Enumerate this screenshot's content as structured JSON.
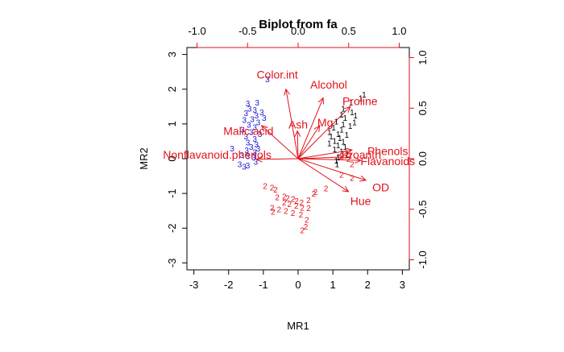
{
  "chart_data": {
    "type": "scatter",
    "title": "Biplot from fa",
    "xlabel": "MR1",
    "ylabel": "MR2",
    "xlim": [
      -3.2,
      3.2
    ],
    "ylim": [
      -3.2,
      3.2
    ],
    "xticks": [
      -3,
      -2,
      -1,
      0,
      1,
      2,
      3
    ],
    "yticks": [
      -3,
      -2,
      -1,
      0,
      1,
      2,
      3
    ],
    "top_axis": {
      "range": [
        -1.1,
        1.1
      ],
      "ticks": [
        -1.0,
        -0.5,
        0.0,
        0.5,
        1.0
      ],
      "tick_labels": [
        "-1.0",
        "-0.5",
        "0.0",
        "0.5",
        "1.0"
      ],
      "color": "#e3121b"
    },
    "right_axis": {
      "range": [
        -1.1,
        1.1
      ],
      "ticks": [
        -1.0,
        -0.5,
        0.0,
        0.5,
        1.0
      ],
      "tick_labels": [
        "-1.0",
        "-0.5",
        "0.0",
        "0.5",
        "1.0"
      ],
      "color": "#e3121b"
    },
    "loadings": [
      {
        "name": "Color.int",
        "x": -0.35,
        "y": 2.0,
        "lx": -0.6,
        "ly": 2.42
      },
      {
        "name": "Alcohol",
        "x": 0.72,
        "y": 1.75,
        "lx": 0.88,
        "ly": 2.13
      },
      {
        "name": "Proline",
        "x": 1.5,
        "y": 1.5,
        "lx": 1.78,
        "ly": 1.66
      },
      {
        "name": "Malic.acid",
        "x": -1.05,
        "y": 0.95,
        "lx": -1.43,
        "ly": 0.8
      },
      {
        "name": "Ash",
        "x": -0.02,
        "y": 0.8,
        "lx": 0.0,
        "ly": 0.98
      },
      {
        "name": "Mg",
        "x": 0.62,
        "y": 0.95,
        "lx": 0.78,
        "ly": 1.04
      },
      {
        "name": "Nonflavanoid.phenols",
        "x": -1.2,
        "y": -0.02,
        "lx": -2.33,
        "ly": 0.12
      },
      {
        "name": "Phenols",
        "x": 1.55,
        "y": 0.25,
        "lx": 2.58,
        "ly": 0.22
      },
      {
        "name": "Proanth",
        "x": 1.3,
        "y": 0.05,
        "lx": 1.82,
        "ly": 0.12
      },
      {
        "name": "Flavanoids",
        "x": 1.8,
        "y": -0.05,
        "lx": 2.58,
        "ly": -0.07
      },
      {
        "name": "OD",
        "x": 1.95,
        "y": -0.62,
        "lx": 2.38,
        "ly": -0.82
      },
      {
        "name": "Hue",
        "x": 1.45,
        "y": -0.95,
        "lx": 1.8,
        "ly": -1.22
      }
    ],
    "series": [
      {
        "name": "1",
        "color": "#000000",
        "points": [
          [
            1.9,
            1.85
          ],
          [
            1.8,
            1.75
          ],
          [
            1.52,
            1.62
          ],
          [
            1.3,
            1.45
          ],
          [
            1.55,
            1.35
          ],
          [
            1.25,
            1.28
          ],
          [
            1.65,
            1.25
          ],
          [
            1.35,
            1.18
          ],
          [
            1.62,
            1.05
          ],
          [
            1.1,
            1.08
          ],
          [
            1.3,
            1.0
          ],
          [
            1.5,
            0.95
          ],
          [
            1.02,
            0.9
          ],
          [
            1.25,
            0.85
          ],
          [
            0.9,
            0.78
          ],
          [
            1.15,
            0.72
          ],
          [
            1.4,
            0.7
          ],
          [
            0.95,
            0.65
          ],
          [
            1.2,
            0.6
          ],
          [
            1.05,
            0.52
          ],
          [
            1.3,
            0.5
          ],
          [
            0.9,
            0.45
          ],
          [
            1.15,
            0.4
          ],
          [
            1.35,
            0.35
          ],
          [
            1.05,
            0.28
          ],
          [
            1.25,
            0.22
          ],
          [
            1.4,
            0.12
          ],
          [
            1.15,
            0.05
          ],
          [
            1.1,
            -0.05
          ],
          [
            1.12,
            -0.15
          ]
        ]
      },
      {
        "name": "2",
        "color": "#e3121b",
        "points": [
          [
            1.5,
            0.1
          ],
          [
            1.38,
            0.1
          ],
          [
            1.25,
            0.08
          ],
          [
            1.45,
            0.0
          ],
          [
            1.55,
            -0.15
          ],
          [
            1.25,
            -0.45
          ],
          [
            1.55,
            -0.55
          ],
          [
            0.8,
            -0.85
          ],
          [
            0.45,
            -1.0
          ],
          [
            0.5,
            -0.95
          ],
          [
            -0.95,
            -0.78
          ],
          [
            -0.75,
            -0.82
          ],
          [
            -0.65,
            -0.88
          ],
          [
            -0.6,
            -1.1
          ],
          [
            -0.4,
            -1.08
          ],
          [
            -0.3,
            -1.12
          ],
          [
            -0.15,
            -1.15
          ],
          [
            -0.05,
            -1.2
          ],
          [
            0.1,
            -1.25
          ],
          [
            0.3,
            -1.18
          ],
          [
            -0.4,
            -1.25
          ],
          [
            -0.25,
            -1.3
          ],
          [
            -0.05,
            -1.35
          ],
          [
            0.12,
            -1.4
          ],
          [
            0.3,
            -1.42
          ],
          [
            -0.75,
            -1.4
          ],
          [
            -0.55,
            -1.45
          ],
          [
            -0.35,
            -1.5
          ],
          [
            -0.15,
            -1.55
          ],
          [
            0.08,
            -1.6
          ],
          [
            -0.72,
            -1.52
          ],
          [
            0.25,
            -1.75
          ],
          [
            0.22,
            -1.95
          ],
          [
            0.12,
            -2.05
          ]
        ]
      },
      {
        "name": "3",
        "color": "#1a1adb",
        "points": [
          [
            -0.88,
            2.3
          ],
          [
            -1.45,
            1.6
          ],
          [
            -1.18,
            1.62
          ],
          [
            -1.4,
            1.45
          ],
          [
            -1.25,
            1.42
          ],
          [
            -1.05,
            1.35
          ],
          [
            -1.5,
            1.32
          ],
          [
            -1.2,
            1.25
          ],
          [
            -0.98,
            1.18
          ],
          [
            -1.32,
            1.15
          ],
          [
            -1.55,
            1.12
          ],
          [
            -1.15,
            1.05
          ],
          [
            -1.42,
            0.98
          ],
          [
            -1.25,
            0.92
          ],
          [
            -1.6,
            0.85
          ],
          [
            -1.35,
            0.78
          ],
          [
            -1.1,
            0.72
          ],
          [
            -1.5,
            0.65
          ],
          [
            -1.25,
            0.58
          ],
          [
            -1.45,
            0.48
          ],
          [
            -1.2,
            0.42
          ],
          [
            -1.35,
            0.35
          ],
          [
            -1.15,
            0.3
          ],
          [
            -1.48,
            0.25
          ],
          [
            -1.25,
            0.2
          ],
          [
            -1.9,
            0.3
          ],
          [
            -1.62,
            0.12
          ],
          [
            -1.45,
            0.08
          ],
          [
            -1.28,
            0.05
          ],
          [
            -1.22,
            -0.08
          ],
          [
            -1.68,
            -0.15
          ],
          [
            -1.45,
            -0.18
          ],
          [
            -1.55,
            -0.22
          ]
        ]
      }
    ]
  }
}
